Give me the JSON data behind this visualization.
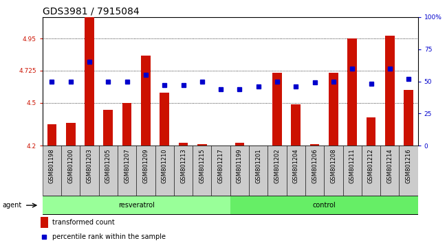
{
  "title": "GDS3981 / 7915084",
  "samples": [
    "GSM801198",
    "GSM801200",
    "GSM801203",
    "GSM801205",
    "GSM801207",
    "GSM801209",
    "GSM801210",
    "GSM801213",
    "GSM801215",
    "GSM801217",
    "GSM801199",
    "GSM801201",
    "GSM801202",
    "GSM801204",
    "GSM801206",
    "GSM801208",
    "GSM801211",
    "GSM801212",
    "GSM801214",
    "GSM801216"
  ],
  "transformed_count": [
    4.35,
    4.36,
    5.1,
    4.45,
    4.5,
    4.83,
    4.57,
    4.22,
    4.21,
    4.2,
    4.22,
    4.2,
    4.71,
    4.49,
    4.21,
    4.71,
    4.95,
    4.4,
    4.97,
    4.59
  ],
  "percentile_rank": [
    50,
    50,
    65,
    50,
    50,
    55,
    47,
    47,
    50,
    44,
    44,
    46,
    50,
    46,
    49,
    50,
    60,
    48,
    60,
    52
  ],
  "resveratrol_count": 10,
  "control_count": 10,
  "ylim_left": [
    4.2,
    5.1
  ],
  "ylim_right": [
    0,
    100
  ],
  "yticks_left": [
    4.2,
    4.5,
    4.725,
    4.95
  ],
  "ytick_labels_left": [
    "4.2",
    "4.5",
    "4.725",
    "4.95"
  ],
  "yticks_right": [
    0,
    25,
    50,
    75,
    100
  ],
  "ytick_labels_right": [
    "0",
    "25",
    "50",
    "75",
    "100%"
  ],
  "bar_color": "#cc1100",
  "dot_color": "#0000cc",
  "resveratrol_color": "#99ff99",
  "control_color": "#66ee66",
  "grey_color": "#cccccc",
  "agent_label": "agent",
  "resveratrol_label": "resveratrol",
  "control_label": "control",
  "legend_bar_label": "transformed count",
  "legend_dot_label": "percentile rank within the sample",
  "bar_bottom": 4.2,
  "title_fontsize": 10,
  "tick_label_fontsize": 6.5,
  "sample_fontsize": 6
}
